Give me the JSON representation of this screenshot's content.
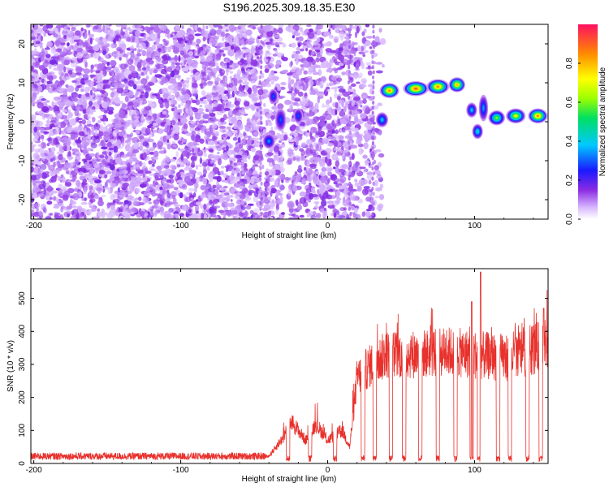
{
  "title": "S196.2025.309.18.35.E30",
  "top_panel": {
    "xlabel": "Height of straight line (km)",
    "ylabel": "Frequency (Hz)",
    "x_ticks": [
      "-200",
      "-100",
      "0",
      "100"
    ],
    "y_ticks": [
      "-20",
      "-10",
      "0",
      "10",
      "20"
    ],
    "colorbar_label": "Normalized spectral amplitude",
    "colorbar_ticks": [
      "0.0",
      "0.2",
      "0.4",
      "0.6",
      "0.8"
    ]
  },
  "bottom_panel": {
    "xlabel": "Height of straight line (km)",
    "ylabel": "SNR (10 * v/v)",
    "x_ticks": [
      "-200",
      "-100",
      "0",
      "100"
    ],
    "y_ticks": [
      "0",
      "100",
      "200",
      "300",
      "400",
      "500"
    ]
  },
  "colors": {
    "snr_line": "#e8312c",
    "noise_blob": "#8a2be2"
  },
  "chart_data": [
    {
      "type": "heatmap",
      "title": "S196.2025.309.18.35.E30",
      "xlabel": "Height of straight line (km)",
      "ylabel": "Frequency (Hz)",
      "xlim": [
        -202,
        150
      ],
      "ylim": [
        -25,
        25
      ],
      "zlabel": "Normalized spectral amplitude",
      "zlim": [
        0,
        1
      ],
      "features": [
        {
          "x": 37,
          "y": 0.5,
          "w": 5,
          "h": 3,
          "v": 0.4
        },
        {
          "x": 42,
          "y": 8,
          "w": 10,
          "h": 3,
          "v": 0.85
        },
        {
          "x": 60,
          "y": 8.5,
          "w": 14,
          "h": 3,
          "v": 0.9
        },
        {
          "x": 75,
          "y": 9,
          "w": 12,
          "h": 3,
          "v": 0.85
        },
        {
          "x": 88,
          "y": 9.5,
          "w": 8,
          "h": 3,
          "v": 0.8
        },
        {
          "x": 98,
          "y": 3,
          "w": 4,
          "h": 3,
          "v": 0.4
        },
        {
          "x": 102,
          "y": -2.5,
          "w": 4,
          "h": 3,
          "v": 0.45
        },
        {
          "x": 106,
          "y": 3.5,
          "w": 3,
          "h": 6,
          "v": 0.35
        },
        {
          "x": 115,
          "y": 1,
          "w": 8,
          "h": 3,
          "v": 0.6
        },
        {
          "x": 128,
          "y": 1.5,
          "w": 10,
          "h": 3,
          "v": 0.7
        },
        {
          "x": 143,
          "y": 1.5,
          "w": 10,
          "h": 3,
          "v": 0.85
        },
        {
          "x": -40,
          "y": -5,
          "w": 5,
          "h": 3,
          "v": 0.35
        },
        {
          "x": -37,
          "y": 6.5,
          "w": 3,
          "h": 3,
          "v": 0.3
        },
        {
          "x": -32,
          "y": 0.5,
          "w": 4,
          "h": 5,
          "v": 0.3
        },
        {
          "x": -20,
          "y": 1.5,
          "w": 3,
          "h": 3,
          "v": 0.3
        }
      ]
    },
    {
      "type": "line",
      "xlabel": "Height of straight line (km)",
      "ylabel": "SNR (10 * v/v)",
      "xlim": [
        -202,
        150
      ],
      "ylim": [
        0,
        590
      ],
      "baseline_levels": [
        {
          "x": -202,
          "y": 22
        },
        {
          "x": -40,
          "y": 22
        },
        {
          "x": -30,
          "y": 80
        },
        {
          "x": -25,
          "y": 130
        },
        {
          "x": -15,
          "y": 70
        },
        {
          "x": -8,
          "y": 120
        },
        {
          "x": 0,
          "y": 70
        },
        {
          "x": 10,
          "y": 100
        },
        {
          "x": 15,
          "y": 50
        },
        {
          "x": 20,
          "y": 260
        },
        {
          "x": 30,
          "y": 300
        },
        {
          "x": 40,
          "y": 330
        },
        {
          "x": 60,
          "y": 330
        },
        {
          "x": 80,
          "y": 340
        },
        {
          "x": 100,
          "y": 330
        },
        {
          "x": 120,
          "y": 320
        },
        {
          "x": 150,
          "y": 360
        }
      ],
      "dropouts_x": [
        -27,
        -12,
        5,
        24,
        32,
        43,
        52,
        63,
        75,
        87,
        98,
        103,
        116,
        124,
        136,
        145
      ],
      "peaks": [
        {
          "x": 104,
          "y": 580
        },
        {
          "x": 147,
          "y": 470
        },
        {
          "x": 98,
          "y": 490
        }
      ]
    }
  ]
}
